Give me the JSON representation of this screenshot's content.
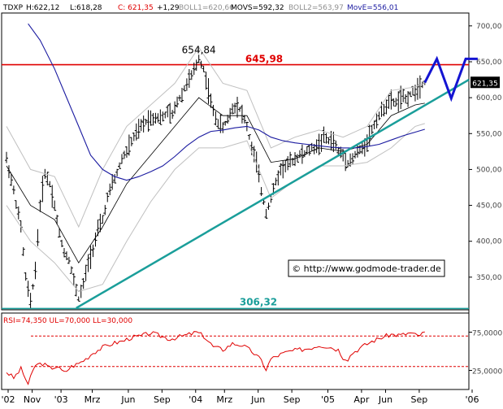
{
  "header": {
    "symbol": "TDXP",
    "high": "H:622,12",
    "low": "L:618,28",
    "close": "C: 621,35",
    "change": "+1,29",
    "boll1": "BOLL1=620,66",
    "movs": "MOVS=592,32",
    "boll2": "BOLL2=563,97",
    "move": "MovE=556,01"
  },
  "watermark": "© http://www.godmode-trader.de",
  "colors": {
    "price": "#000000",
    "boll": "#c0c0c0",
    "movs": "#000000",
    "move": "#1a1aa0",
    "resistance": "#e00000",
    "trend": "#1a9e9a",
    "projection": "#1414d2",
    "rsi": "#e00000",
    "axis_bg": "#ffffff",
    "grid": "#000000"
  },
  "chart_data": [
    {
      "type": "line",
      "title": "TDXP",
      "y_axis_side": "right",
      "ylim": [
        300,
        710
      ],
      "y_ticks": [
        350,
        400,
        450,
        500,
        550,
        600,
        650,
        700
      ],
      "y_tick_labels": [
        "350,00",
        "400,00",
        "450,00",
        "500,00",
        "550,00",
        "600,00",
        "650,00",
        "700,00"
      ],
      "x_tick_labels": [
        "'02",
        "Nov",
        "'03",
        "Mrz",
        "Jun",
        "Sep",
        "'04",
        "Mrz",
        "Jun",
        "Sep",
        "'05",
        "Apr",
        "Jun",
        "Sep",
        "'06"
      ],
      "x_tick_index": [
        0,
        10,
        22,
        35,
        50,
        64,
        78,
        90,
        104,
        118,
        133,
        147,
        157,
        171,
        193
      ],
      "last_price_label": "621,35",
      "n_bars": 190,
      "price_path": [
        [
          0,
          515
        ],
        [
          3,
          470
        ],
        [
          6,
          420
        ],
        [
          8,
          350
        ],
        [
          10,
          315
        ],
        [
          12,
          360
        ],
        [
          14,
          450
        ],
        [
          16,
          495
        ],
        [
          18,
          480
        ],
        [
          20,
          450
        ],
        [
          22,
          410
        ],
        [
          24,
          385
        ],
        [
          26,
          375
        ],
        [
          28,
          345
        ],
        [
          30,
          320
        ],
        [
          32,
          340
        ],
        [
          34,
          370
        ],
        [
          36,
          390
        ],
        [
          38,
          415
        ],
        [
          40,
          430
        ],
        [
          42,
          460
        ],
        [
          44,
          480
        ],
        [
          46,
          495
        ],
        [
          48,
          515
        ],
        [
          50,
          525
        ],
        [
          53,
          545
        ],
        [
          56,
          560
        ],
        [
          59,
          570
        ],
        [
          62,
          573
        ],
        [
          65,
          572
        ],
        [
          67,
          580
        ],
        [
          69,
          575
        ],
        [
          71,
          595
        ],
        [
          73,
          605
        ],
        [
          75,
          620
        ],
        [
          77,
          630
        ],
        [
          79,
          645
        ],
        [
          80,
          654.84
        ],
        [
          82,
          640
        ],
        [
          84,
          610
        ],
        [
          86,
          580
        ],
        [
          88,
          565
        ],
        [
          90,
          558
        ],
        [
          92,
          570
        ],
        [
          94,
          585
        ],
        [
          96,
          590
        ],
        [
          98,
          578
        ],
        [
          100,
          560
        ],
        [
          102,
          530
        ],
        [
          104,
          510
        ],
        [
          106,
          470
        ],
        [
          108,
          440
        ],
        [
          110,
          460
        ],
        [
          112,
          482
        ],
        [
          114,
          500
        ],
        [
          116,
          505
        ],
        [
          118,
          510
        ],
        [
          120,
          515
        ],
        [
          122,
          520
        ],
        [
          124,
          522
        ],
        [
          126,
          528
        ],
        [
          128,
          530
        ],
        [
          130,
          535
        ],
        [
          132,
          545
        ],
        [
          134,
          540
        ],
        [
          136,
          540
        ],
        [
          138,
          525
        ],
        [
          140,
          520
        ],
        [
          142,
          510
        ],
        [
          144,
          515
        ],
        [
          146,
          525
        ],
        [
          148,
          528
        ],
        [
          150,
          540
        ],
        [
          152,
          555
        ],
        [
          154,
          570
        ],
        [
          156,
          580
        ],
        [
          158,
          590
        ],
        [
          160,
          595
        ],
        [
          162,
          593
        ],
        [
          164,
          600
        ],
        [
          166,
          598
        ],
        [
          168,
          605
        ],
        [
          170,
          610
        ],
        [
          172,
          618
        ],
        [
          174,
          621.35
        ]
      ],
      "series": [
        {
          "name": "BOLL1",
          "values": [
            [
              0,
              560
            ],
            [
              10,
              500
            ],
            [
              20,
              490
            ],
            [
              30,
              420
            ],
            [
              40,
              500
            ],
            [
              50,
              560
            ],
            [
              60,
              590
            ],
            [
              70,
              620
            ],
            [
              80,
              670
            ],
            [
              90,
              620
            ],
            [
              100,
              610
            ],
            [
              110,
              530
            ],
            [
              120,
              545
            ],
            [
              130,
              555
            ],
            [
              140,
              545
            ],
            [
              150,
              560
            ],
            [
              160,
              610
            ],
            [
              170,
              615
            ],
            [
              174,
              620.66
            ]
          ]
        },
        {
          "name": "MOVS",
          "values": [
            [
              0,
              505
            ],
            [
              10,
              450
            ],
            [
              20,
              430
            ],
            [
              30,
              370
            ],
            [
              40,
              420
            ],
            [
              50,
              480
            ],
            [
              60,
              520
            ],
            [
              70,
              560
            ],
            [
              80,
              600
            ],
            [
              90,
              575
            ],
            [
              100,
              575
            ],
            [
              110,
              510
            ],
            [
              120,
              515
            ],
            [
              130,
              530
            ],
            [
              140,
              525
            ],
            [
              150,
              535
            ],
            [
              160,
              575
            ],
            [
              170,
              590
            ],
            [
              174,
              592.32
            ]
          ]
        },
        {
          "name": "BOLL2",
          "values": [
            [
              0,
              450
            ],
            [
              10,
              400
            ],
            [
              20,
              370
            ],
            [
              30,
              330
            ],
            [
              40,
              340
            ],
            [
              50,
              400
            ],
            [
              60,
              455
            ],
            [
              70,
              500
            ],
            [
              80,
              530
            ],
            [
              90,
              530
            ],
            [
              100,
              540
            ],
            [
              110,
              460
            ],
            [
              120,
              485
            ],
            [
              130,
              505
            ],
            [
              140,
              505
            ],
            [
              150,
              510
            ],
            [
              160,
              530
            ],
            [
              170,
              560
            ],
            [
              174,
              563.97
            ]
          ]
        },
        {
          "name": "MovE",
          "values": [
            [
              9,
              703
            ],
            [
              14,
              680
            ],
            [
              20,
              640
            ],
            [
              25,
              600
            ],
            [
              30,
              560
            ],
            [
              35,
              520
            ],
            [
              40,
              500
            ],
            [
              45,
              490
            ],
            [
              50,
              485
            ],
            [
              55,
              490
            ],
            [
              60,
              497
            ],
            [
              65,
              505
            ],
            [
              70,
              518
            ],
            [
              75,
              533
            ],
            [
              80,
              545
            ],
            [
              85,
              553
            ],
            [
              90,
              555
            ],
            [
              95,
              558
            ],
            [
              100,
              560
            ],
            [
              105,
              555
            ],
            [
              110,
              545
            ],
            [
              115,
              540
            ],
            [
              120,
              537
            ],
            [
              125,
              535
            ],
            [
              130,
              533
            ],
            [
              135,
              531
            ],
            [
              140,
              530
            ],
            [
              145,
              530
            ],
            [
              150,
              532
            ],
            [
              155,
              535
            ],
            [
              160,
              541
            ],
            [
              165,
              547
            ],
            [
              170,
              552
            ],
            [
              174,
              556.01
            ]
          ]
        }
      ],
      "resistance": {
        "value": 645.98,
        "label": "645,98"
      },
      "support": {
        "value": 306.32,
        "label": "306,32"
      },
      "peak": {
        "x": 80,
        "value": 654.84,
        "label": "654,84"
      },
      "trendline": {
        "from": [
          29,
          307
        ],
        "to": [
          193,
          625
        ]
      },
      "projection": [
        [
          174,
          621
        ],
        [
          179,
          654
        ],
        [
          185,
          599
        ],
        [
          191,
          654
        ],
        [
          196,
          654
        ]
      ]
    },
    {
      "type": "line",
      "title": "RSI=74,350 UL=70,000 LL=30,000",
      "y_axis_side": "right",
      "ylim": [
        0,
        100
      ],
      "y_ticks": [
        25,
        75
      ],
      "y_tick_labels": [
        "25,0000",
        "75,0000"
      ],
      "upper_level": 70,
      "lower_level": 30,
      "series": [
        {
          "name": "RSI",
          "values": [
            [
              0,
              23
            ],
            [
              3,
              15
            ],
            [
              6,
              27
            ],
            [
              9,
              7
            ],
            [
              12,
              32
            ],
            [
              15,
              34
            ],
            [
              18,
              28
            ],
            [
              21,
              30
            ],
            [
              24,
              22
            ],
            [
              27,
              30
            ],
            [
              30,
              34
            ],
            [
              33,
              40
            ],
            [
              36,
              48
            ],
            [
              40,
              55
            ],
            [
              44,
              60
            ],
            [
              48,
              63
            ],
            [
              52,
              68
            ],
            [
              56,
              70
            ],
            [
              60,
              74
            ],
            [
              64,
              70
            ],
            [
              68,
              66
            ],
            [
              72,
              69
            ],
            [
              76,
              72
            ],
            [
              79,
              75
            ],
            [
              82,
              70
            ],
            [
              86,
              56
            ],
            [
              90,
              52
            ],
            [
              94,
              60
            ],
            [
              98,
              58
            ],
            [
              102,
              50
            ],
            [
              106,
              38
            ],
            [
              108,
              26
            ],
            [
              110,
              40
            ],
            [
              114,
              46
            ],
            [
              118,
              50
            ],
            [
              122,
              52
            ],
            [
              126,
              54
            ],
            [
              130,
              58
            ],
            [
              134,
              56
            ],
            [
              138,
              52
            ],
            [
              140,
              42
            ],
            [
              142,
              40
            ],
            [
              144,
              48
            ],
            [
              148,
              56
            ],
            [
              152,
              63
            ],
            [
              156,
              68
            ],
            [
              160,
              72
            ],
            [
              164,
              71
            ],
            [
              168,
              74
            ],
            [
              171,
              70
            ],
            [
              174,
              74.35
            ]
          ]
        }
      ]
    }
  ]
}
